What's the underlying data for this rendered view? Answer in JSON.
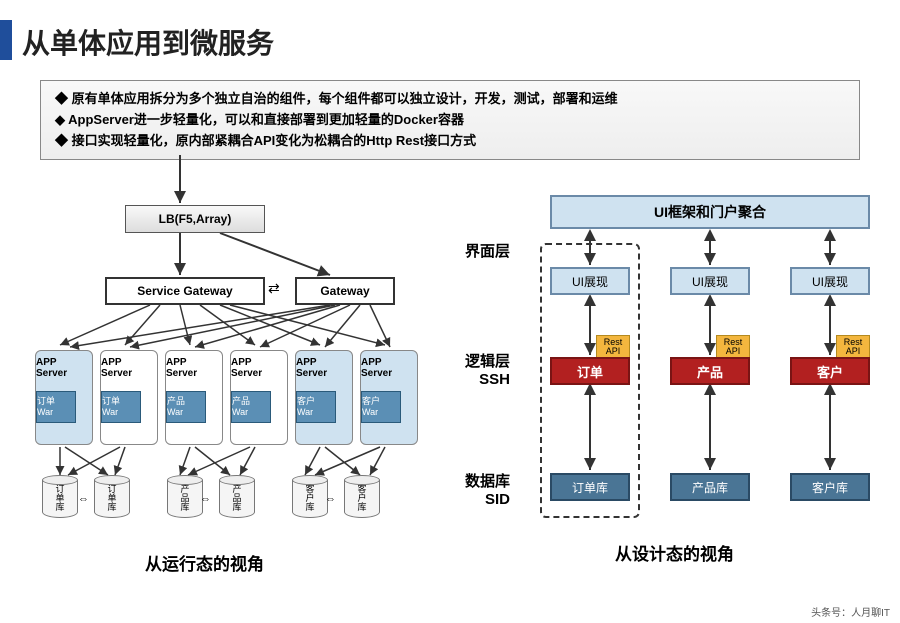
{
  "title": "从单体应用到微服务",
  "bullets": [
    "原有单体应用拆分为多个独立自治的组件，每个组件都可以独立设计，开发，测试，部署和运维",
    "AppServer进一步轻量化，可以和直接部署到更加轻量的Docker容器",
    "接口实现轻量化，原内部紧耦合API变化为松耦合的Http Rest接口方式"
  ],
  "left": {
    "lb": "LB(F5,Array)",
    "service_gateway": "Service Gateway",
    "gateway": "Gateway",
    "servers": [
      {
        "label": "APP\nServer",
        "war": "订单\nWar",
        "blue": true
      },
      {
        "label": "APP\nServer",
        "war": "订单\nWar",
        "blue": false
      },
      {
        "label": "APP\nServer",
        "war": "产品\nWar",
        "blue": false
      },
      {
        "label": "APP\nServer",
        "war": "产品\nWar",
        "blue": false
      },
      {
        "label": "APP\nServer",
        "war": "客户\nWar",
        "blue": true
      },
      {
        "label": "APP\nServer",
        "war": "客户\nWar",
        "blue": true
      }
    ],
    "dbs": [
      "订单库",
      "订单库",
      "产品库",
      "产品库",
      "客户库",
      "客户库"
    ],
    "subtitle": "从运行态的视角"
  },
  "right": {
    "ui_top": "UI框架和门户聚合",
    "layers": {
      "ui": "界面层",
      "logic": "逻辑层\nSSH",
      "db": "数据库\nSID"
    },
    "cols": [
      {
        "ui": "UI展现",
        "rest": "Rest\nAPI",
        "logic": "订单",
        "db": "订单库"
      },
      {
        "ui": "UI展现",
        "rest": "Rest\nAPI",
        "logic": "产品",
        "db": "产品库"
      },
      {
        "ui": "UI展现",
        "rest": "Rest\nAPI",
        "logic": "客户",
        "db": "客户库"
      }
    ],
    "subtitle": "从设计态的视角"
  },
  "footer": "头条号：人月聊IT",
  "colors": {
    "title_bar": "#1f4e9b",
    "blue_fill": "#cfe2f0",
    "blue_border": "#6b8aa8",
    "war_fill": "#5b8fb5",
    "red_fill": "#b22020",
    "orange_fill": "#f3b63e",
    "db_fill": "#4a7595"
  }
}
